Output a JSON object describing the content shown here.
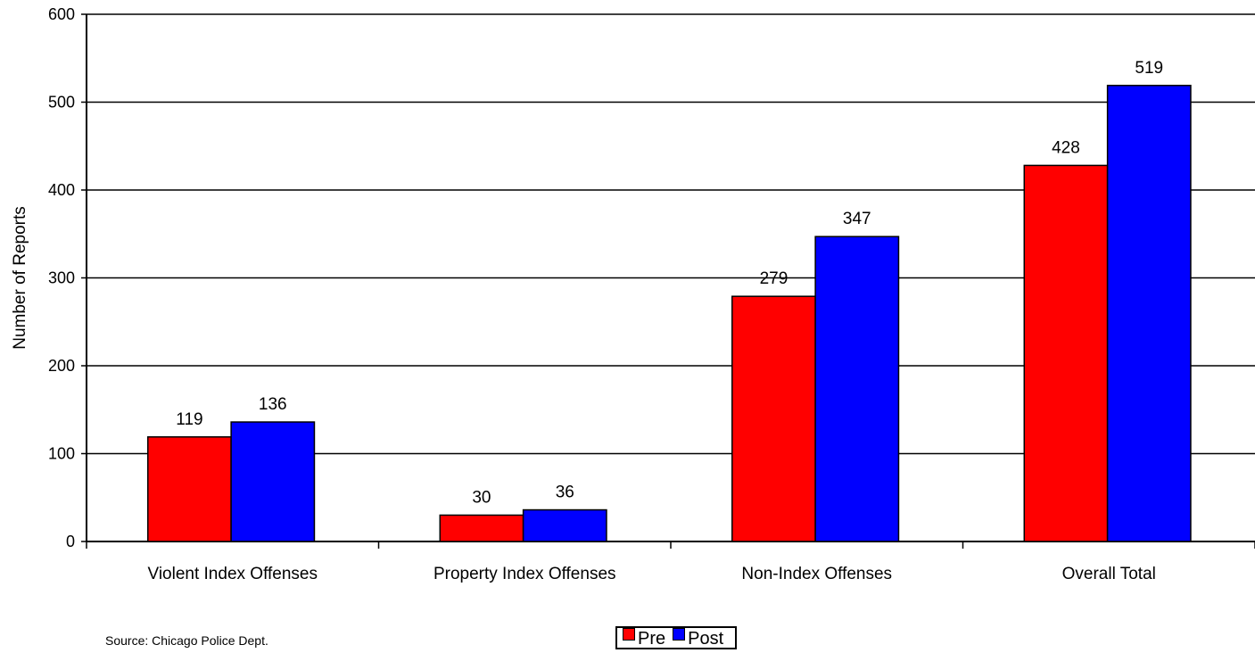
{
  "chart_data": {
    "type": "bar",
    "title": "",
    "xlabel": "",
    "ylabel": "Number of Reports",
    "ylim": [
      0,
      600
    ],
    "yticks": [
      0,
      100,
      200,
      300,
      400,
      500,
      600
    ],
    "categories": [
      "Violent Index Offenses",
      "Property Index Offenses",
      "Non-Index Offenses",
      "Overall Total"
    ],
    "series": [
      {
        "name": "Pre",
        "color": "#ff0000",
        "values": [
          119,
          30,
          279,
          428
        ]
      },
      {
        "name": "Post",
        "color": "#0000ff",
        "values": [
          136,
          36,
          347,
          519
        ]
      }
    ],
    "grid": true,
    "legend_position": "bottom-center"
  },
  "source_text": "Source: Chicago Police Dept."
}
